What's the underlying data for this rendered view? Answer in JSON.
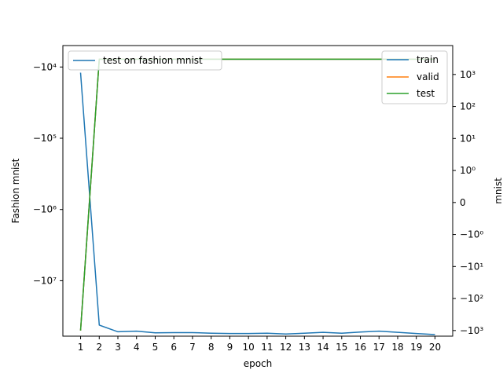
{
  "chart_data": {
    "type": "line",
    "x": [
      1,
      2,
      3,
      4,
      5,
      6,
      7,
      8,
      9,
      10,
      11,
      12,
      13,
      14,
      15,
      16,
      17,
      18,
      19,
      20
    ],
    "xticks": [
      "1",
      "2",
      "3",
      "4",
      "5",
      "6",
      "7",
      "8",
      "9",
      "10",
      "11",
      "12",
      "13",
      "14",
      "15",
      "16",
      "17",
      "18",
      "19",
      "20"
    ],
    "xlabel": "epoch",
    "left_axis": {
      "ylabel": "Fashion mnist",
      "scale": "symlog",
      "ylim": [
        -60000000,
        -5000
      ],
      "ticks": [
        {
          "value": -10000,
          "label": "−10⁴"
        },
        {
          "value": -100000,
          "label": "−10⁵"
        },
        {
          "value": -1000000,
          "label": "−10⁶"
        },
        {
          "value": -10000000,
          "label": "−10⁷"
        }
      ],
      "series": [
        {
          "name": "test on fashion mnist",
          "color": "#1f77b4",
          "values": [
            -12000,
            -42000000,
            -52000000,
            -51000000,
            -54000000,
            -53500000,
            -53500000,
            -54500000,
            -55000000,
            -55000000,
            -54500000,
            -56000000,
            -54500000,
            -53000000,
            -54500000,
            -52500000,
            -51000000,
            -53000000,
            -55000000,
            -57000000
          ]
        }
      ],
      "legend": "top-left"
    },
    "right_axis": {
      "ylabel": "mnist",
      "scale": "symlog",
      "ylim": [
        -1500,
        8000
      ],
      "ticks": [
        {
          "value": 1000,
          "label": "10³"
        },
        {
          "value": 100,
          "label": "10²"
        },
        {
          "value": 10,
          "label": "10¹"
        },
        {
          "value": 1,
          "label": "10⁰"
        },
        {
          "value": 0,
          "label": "0"
        },
        {
          "value": -1,
          "label": "−10⁰"
        },
        {
          "value": -10,
          "label": "−10¹"
        },
        {
          "value": -100,
          "label": "−10²"
        },
        {
          "value": -1000,
          "label": "−10³"
        }
      ],
      "series": [
        {
          "name": "train",
          "color": "#1f77b4",
          "values": [
            -1000,
            3000,
            3000,
            3000,
            3000,
            3000,
            3000,
            3000,
            3000,
            3000,
            3000,
            3000,
            3000,
            3000,
            3000,
            3000,
            3000,
            3000,
            3000,
            3000
          ]
        },
        {
          "name": "valid",
          "color": "#ff7f0e",
          "values": [
            -1000,
            3000,
            3000,
            3000,
            3000,
            3000,
            3000,
            3000,
            3000,
            3000,
            3000,
            3000,
            3000,
            3000,
            3000,
            3000,
            3000,
            3000,
            3000,
            3000
          ]
        },
        {
          "name": "test",
          "color": "#2ca02c",
          "values": [
            -1000,
            3000,
            3000,
            3000,
            3000,
            3000,
            3000,
            3000,
            3000,
            3000,
            3000,
            3000,
            3000,
            3000,
            3000,
            3000,
            3000,
            3000,
            3000,
            3000
          ]
        }
      ],
      "legend": "top-right"
    }
  }
}
